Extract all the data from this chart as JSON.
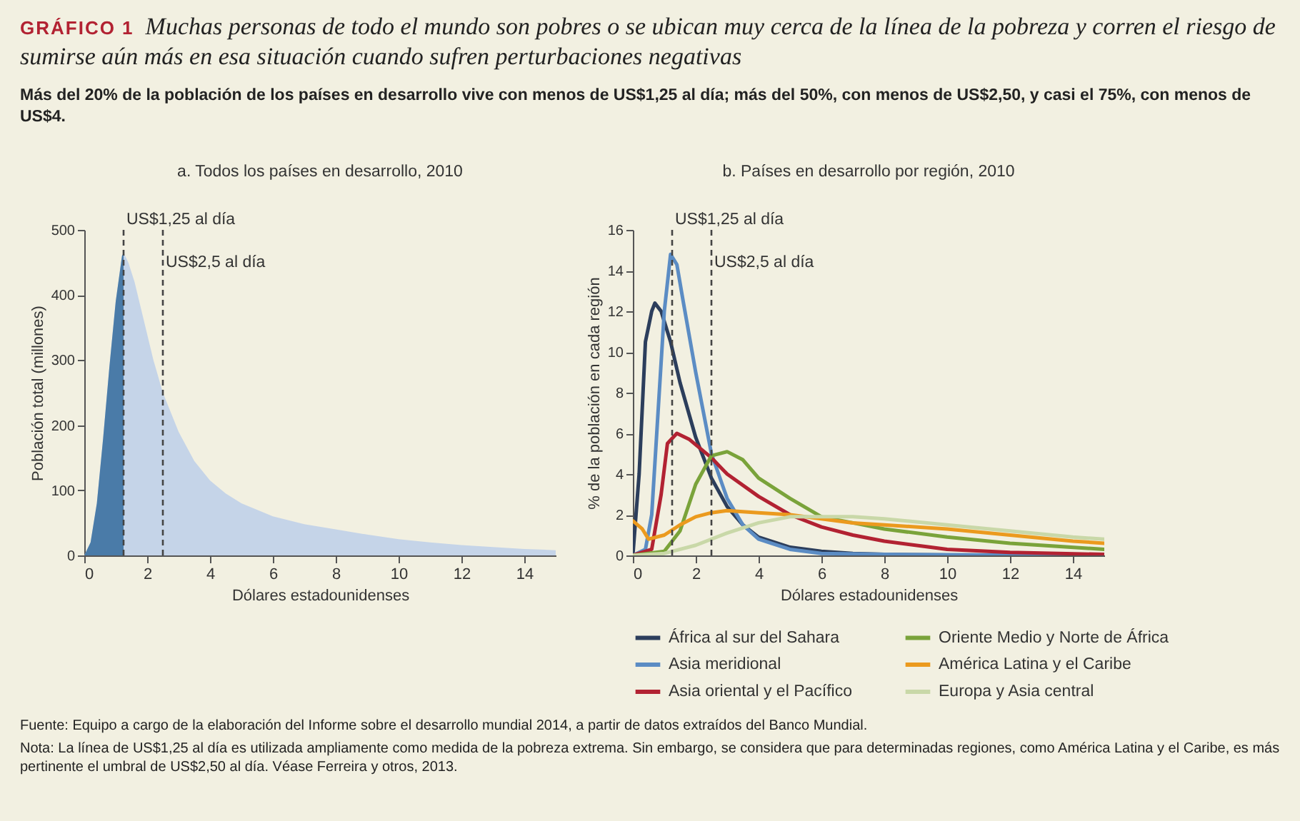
{
  "chart_data": [
    {
      "type": "area",
      "title": "a. Todos los países en desarrollo, 2010",
      "xlabel": "Dólares estadounidenses",
      "ylabel": "Población total (millones)",
      "annotations": [
        "GRÁFICO 1",
        "Muchas personas de todo el mundo son pobres o se ubican muy cerca de la línea de la pobreza y corren el riesgo de sumirse aún más en esa situación cuando sufren perturbaciones negativas",
        "Más del 20% de la población de los países en desarrollo vive con menos de US$1,25 al día; más del 50%, con menos de US$2,50, y casi el 75%, con menos de US$4."
      ],
      "xlim": [
        0,
        15
      ],
      "xticks": [
        0,
        2,
        4,
        6,
        8,
        10,
        12,
        14
      ],
      "ylim": [
        0,
        500
      ],
      "yticks": [
        0,
        100,
        200,
        300,
        400,
        500
      ],
      "grid": false,
      "legend": false,
      "series": [
        {
          "color": "#c5d4e8",
          "x": [
            0,
            0.2,
            0.4,
            0.6,
            0.8,
            1.0,
            1.2,
            1.25,
            1.4,
            1.6,
            1.8,
            2.0,
            2.2,
            2.5,
            3,
            3.5,
            4,
            4.5,
            5,
            6,
            7,
            8,
            9,
            10,
            11,
            12,
            13,
            14,
            15
          ],
          "values": [
            0,
            20,
            80,
            180,
            290,
            390,
            460,
            465,
            450,
            420,
            380,
            340,
            300,
            250,
            190,
            145,
            115,
            95,
            80,
            60,
            48,
            40,
            32,
            25,
            20,
            16,
            13,
            10,
            8
          ]
        },
        {
          "color": "#4a7ba8",
          "x": [
            0,
            0.2,
            0.4,
            0.6,
            0.8,
            1.0,
            1.2,
            1.25
          ],
          "values": [
            0,
            20,
            80,
            180,
            290,
            390,
            460,
            465
          ]
        }
      ],
      "ref_lines": [
        {
          "axis": "x",
          "value": 1.25,
          "label": "US$1,25 al día",
          "line_style": "dashed"
        },
        {
          "axis": "x",
          "value": 2.5,
          "label": "US$2,5 al día",
          "line_style": "dashed"
        }
      ]
    },
    {
      "type": "line",
      "title": "b. Países en desarrollo por región, 2010",
      "xlabel": "Dólares estadounidenses",
      "ylabel": "% de la población en cada región",
      "annotations": [
        "Fuente: Equipo a cargo de la elaboración del Informe sobre el desarrollo mundial 2014, a partir de datos extraídos del Banco Mundial.",
        "Nota: La línea de US$1,25 al día es utilizada ampliamente como medida de la pobreza extrema. Sin embargo, se considera que para determinadas regiones, como América Latina y el Caribe, es más pertinente el umbral de US$2,50 al día. Véase Ferreira y otros, 2013."
      ],
      "xlim": [
        0,
        15
      ],
      "xticks": [
        0,
        2,
        4,
        6,
        8,
        10,
        12,
        14
      ],
      "ylim": [
        0,
        16
      ],
      "yticks": [
        0,
        2,
        4,
        6,
        8,
        10,
        12,
        14,
        16
      ],
      "grid": false,
      "legend": "bottom",
      "line_style": "solid",
      "series": [
        {
          "name": "África al sur del Sahara",
          "color": "#2c3e5c",
          "x": [
            0,
            0.2,
            0.4,
            0.6,
            0.7,
            0.9,
            1.2,
            1.5,
            2,
            2.5,
            3,
            3.5,
            4,
            5,
            6,
            7,
            8,
            10,
            15
          ],
          "values": [
            0,
            4,
            10.5,
            12,
            12.4,
            12,
            10.5,
            8.5,
            5.8,
            3.8,
            2.4,
            1.5,
            0.9,
            0.4,
            0.2,
            0.1,
            0.05,
            0.02,
            0
          ]
        },
        {
          "name": "Asia meridional",
          "color": "#5b8cc4",
          "x": [
            0,
            0.4,
            0.6,
            0.8,
            1.0,
            1.2,
            1.4,
            1.6,
            2.0,
            2.5,
            3,
            3.5,
            4,
            5,
            6,
            8,
            15
          ],
          "values": [
            0,
            0.3,
            2,
            7,
            12,
            14.8,
            14.3,
            12.5,
            9,
            5,
            2.8,
            1.5,
            0.8,
            0.3,
            0.1,
            0.05,
            0
          ]
        },
        {
          "name": "Asia oriental y el Pacífico",
          "color": "#b22232",
          "x": [
            0,
            0.6,
            0.9,
            1.1,
            1.4,
            1.8,
            2.5,
            3,
            4,
            5,
            6,
            7,
            8,
            10,
            12,
            15
          ],
          "values": [
            0,
            0.3,
            3,
            5.5,
            6,
            5.7,
            4.8,
            4,
            2.9,
            2,
            1.4,
            1,
            0.7,
            0.3,
            0.15,
            0.05
          ]
        },
        {
          "name": "Oriente Medio y Norte de África",
          "color": "#7aa33a",
          "x": [
            0,
            1,
            1.5,
            2,
            2.5,
            3,
            3.5,
            4,
            5,
            6,
            7,
            8,
            10,
            12,
            15
          ],
          "values": [
            0,
            0.2,
            1.2,
            3.5,
            4.9,
            5.1,
            4.7,
            3.8,
            2.8,
            1.9,
            1.6,
            1.3,
            0.9,
            0.6,
            0.3
          ]
        },
        {
          "name": "América Latina y el Caribe",
          "color": "#eb9a1e",
          "x": [
            0,
            0.3,
            0.5,
            1,
            1.5,
            2,
            2.5,
            3,
            4,
            5,
            6,
            7,
            8,
            10,
            12,
            14,
            15
          ],
          "values": [
            1.7,
            1.3,
            0.8,
            1,
            1.5,
            1.9,
            2.1,
            2.2,
            2.1,
            2,
            1.8,
            1.6,
            1.5,
            1.3,
            1,
            0.7,
            0.6
          ]
        },
        {
          "name": "Europa y Asia central",
          "color": "#c9d8a8",
          "x": [
            0,
            1,
            2,
            3,
            4,
            5,
            6,
            7,
            8,
            10,
            12,
            14,
            15
          ],
          "values": [
            0,
            0.1,
            0.5,
            1.1,
            1.6,
            1.9,
            1.9,
            1.9,
            1.8,
            1.5,
            1.2,
            0.9,
            0.8
          ]
        }
      ],
      "ref_lines": [
        {
          "axis": "x",
          "value": 1.25,
          "label": "US$1,25 al día",
          "line_style": "dashed"
        },
        {
          "axis": "x",
          "value": 2.5,
          "label": "US$2,5 al día",
          "line_style": "dashed"
        }
      ]
    }
  ]
}
